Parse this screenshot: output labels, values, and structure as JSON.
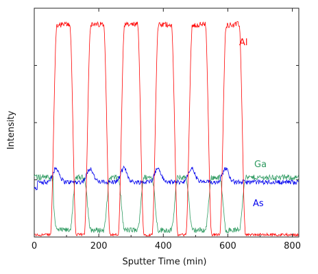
{
  "chart_data": {
    "type": "line",
    "title": "",
    "xlabel": "Sputter Time (min)",
    "ylabel": "Intensity",
    "xlim": [
      0,
      820
    ],
    "ylim": [
      0,
      1.0
    ],
    "x_ticks": [
      0,
      200,
      400,
      600,
      800
    ],
    "x_tick_labels": [
      "0",
      "200",
      "400",
      "600",
      "800"
    ],
    "y_tick_labels_shown": false,
    "grid": false,
    "colors": {
      "Al": "#ff0000",
      "Ga": "#2e9a60",
      "As": "#0000ee",
      "axis": "#222222"
    },
    "series": [
      {
        "name": "Al",
        "baseline": 0.01,
        "peak": 0.93,
        "layers": [
          {
            "start": 60,
            "end": 120
          },
          {
            "start": 165,
            "end": 225
          },
          {
            "start": 270,
            "end": 330
          },
          {
            "start": 375,
            "end": 435
          },
          {
            "start": 480,
            "end": 540
          },
          {
            "start": 585,
            "end": 645
          }
        ]
      },
      {
        "name": "Ga",
        "barrier_level": 0.26,
        "in_layer_level": 0.03,
        "end_level": 0.26
      },
      {
        "name": "As",
        "base_level": 0.24,
        "bump_level": 0.3
      }
    ],
    "series_labels": {
      "Al": "Al",
      "Ga": "Ga",
      "As": "As"
    }
  }
}
